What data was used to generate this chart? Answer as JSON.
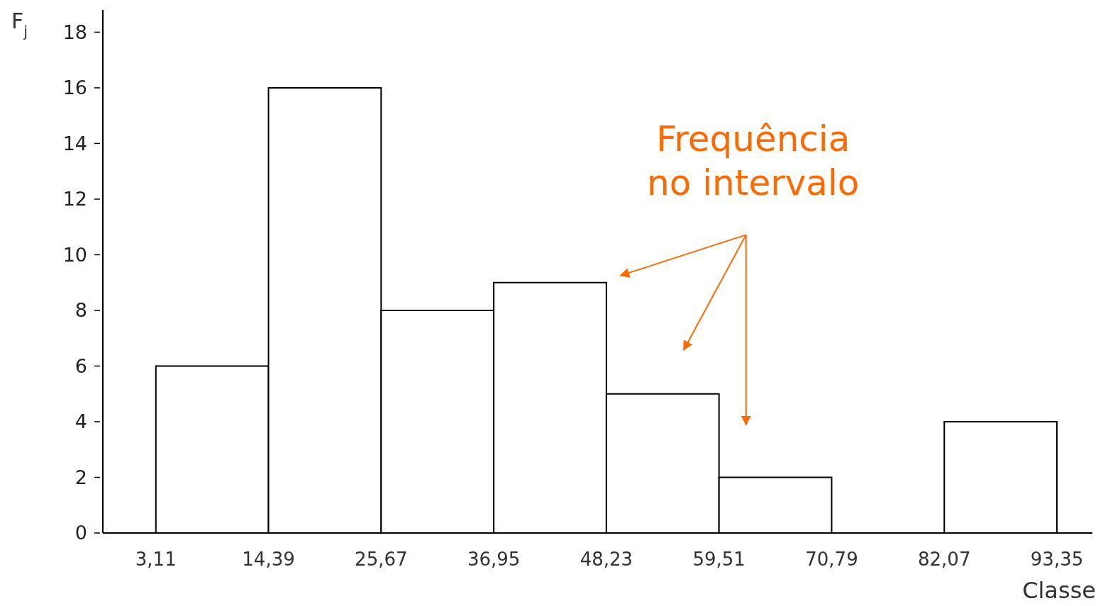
{
  "chart_data": {
    "type": "histogram",
    "xlabel": "Classe",
    "ylabel": "F$_{j}$",
    "bins": [
      3.11,
      14.39,
      25.67,
      36.95,
      48.23,
      59.51,
      70.79,
      82.07,
      93.35
    ],
    "values": [
      6,
      16,
      8,
      9,
      5,
      2,
      0,
      4
    ],
    "color": "#ffffff",
    "xlim": [
      -2.2,
      96.9
    ],
    "ylim": [
      0,
      18.8
    ],
    "xticks": [
      {
        "value": 3.11,
        "label": "3,11"
      },
      {
        "value": 14.39,
        "label": "14,39"
      },
      {
        "value": 25.67,
        "label": "25,67"
      },
      {
        "value": 36.95,
        "label": "36,95"
      },
      {
        "value": 48.23,
        "label": "48,23"
      },
      {
        "value": 59.51,
        "label": "59,51"
      },
      {
        "value": 70.79,
        "label": "70,79"
      },
      {
        "value": 82.07,
        "label": "82,07"
      },
      {
        "value": 93.35,
        "label": "93,35"
      }
    ],
    "yticks": [
      0,
      2,
      4,
      6,
      8,
      10,
      12,
      14,
      16,
      18
    ],
    "grid": false,
    "annotations": [
      "Frequência\nno intervalo"
    ]
  }
}
